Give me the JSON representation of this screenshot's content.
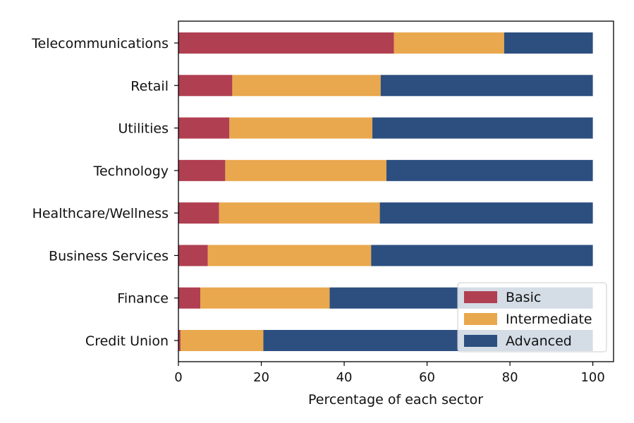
{
  "chart_data": {
    "type": "bar",
    "orientation": "horizontal",
    "stacked": true,
    "title": "",
    "xlabel": "Percentage of each sector",
    "ylabel": "",
    "xlim": [
      0,
      105
    ],
    "xticks": [
      0,
      20,
      40,
      60,
      80,
      100
    ],
    "grid": false,
    "legend_position": "lower-right",
    "categories": [
      "Credit Union",
      "Finance",
      "Business Services",
      "Healthcare/Wellness",
      "Technology",
      "Utilities",
      "Retail",
      "Telecommunications"
    ],
    "series": [
      {
        "name": "Basic",
        "color": "#b03f51",
        "values": [
          0.5,
          5.3,
          7.1,
          9.8,
          11.3,
          12.3,
          13.0,
          52.0
        ]
      },
      {
        "name": "Intermediate",
        "color": "#e9a84e",
        "values": [
          20.0,
          31.2,
          39.4,
          38.8,
          38.9,
          34.5,
          35.8,
          26.6
        ]
      },
      {
        "name": "Advanced",
        "color": "#2c4f80",
        "values": [
          79.5,
          63.5,
          53.5,
          51.4,
          49.8,
          53.2,
          51.2,
          21.4
        ]
      }
    ]
  }
}
